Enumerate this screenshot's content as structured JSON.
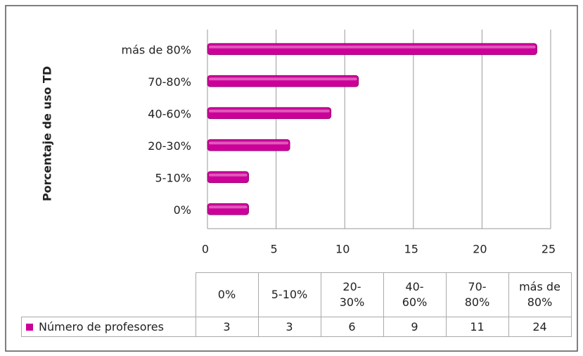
{
  "chart_data": {
    "type": "bar",
    "orientation": "horizontal",
    "y_label": "Porcentaje de uso TD",
    "categories": [
      "0%",
      "5-10%",
      "20-30%",
      "40-60%",
      "70-80%",
      "más de 80%"
    ],
    "series": [
      {
        "name": "Número de profesores",
        "color": "#cc0099",
        "values": [
          3,
          3,
          6,
          9,
          11,
          24
        ]
      }
    ],
    "xlim": [
      0,
      25
    ],
    "xticks": [
      0,
      5,
      10,
      15,
      20,
      25
    ],
    "grid": true,
    "data_table": true
  }
}
